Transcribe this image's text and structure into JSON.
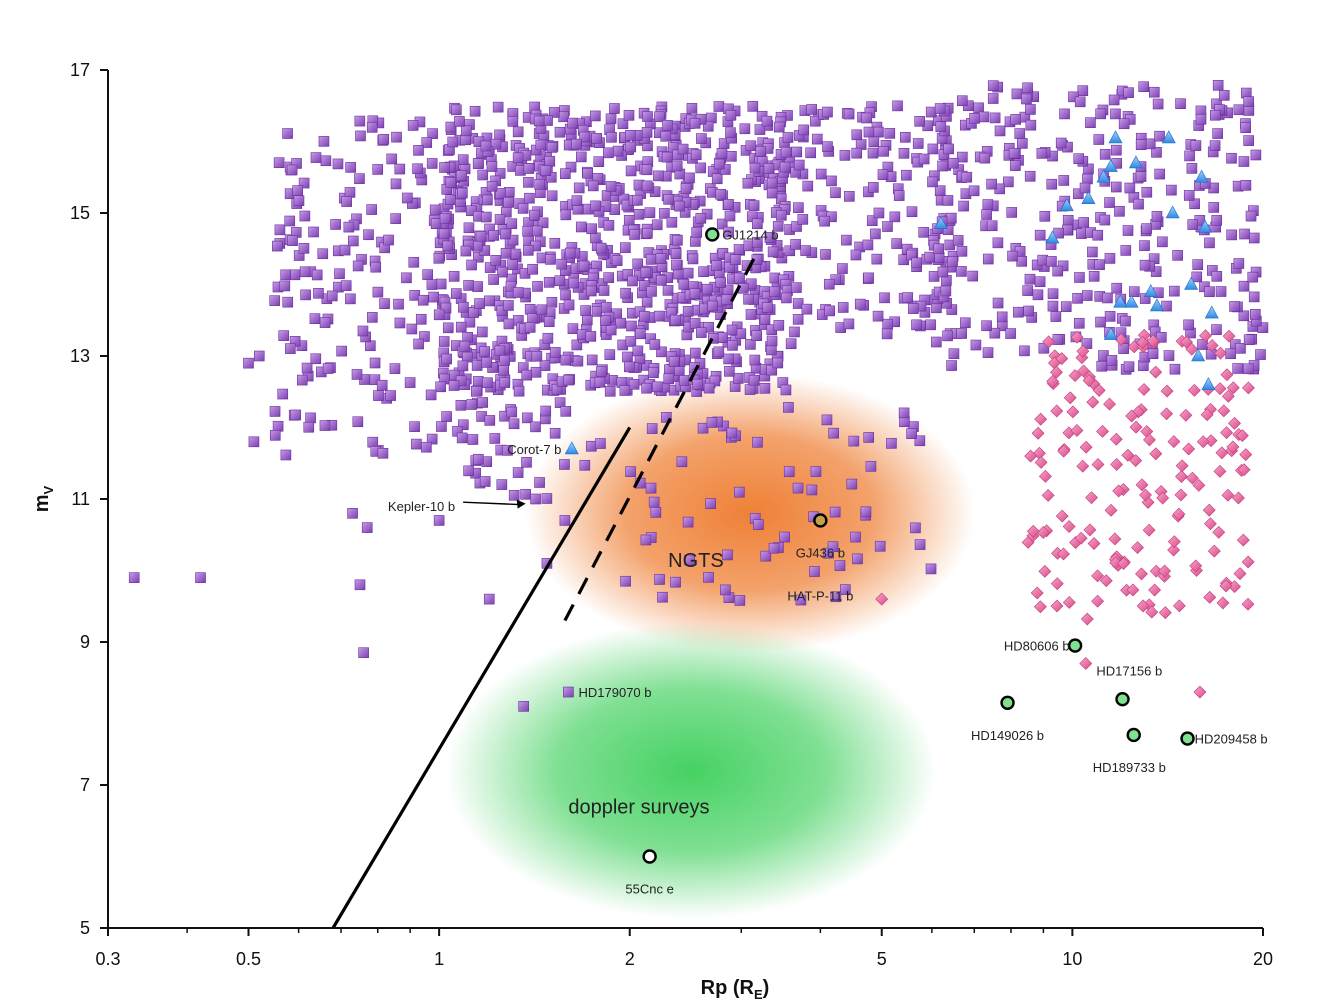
{
  "chart_data": {
    "type": "scatter",
    "title": "",
    "xlabel": "Rp (R",
    "xlabel_sub": "E",
    "xlabel_close": ")",
    "ylabel": "m",
    "ylabel_sub": "V",
    "x_scale": "log",
    "xlim": [
      0.3,
      20
    ],
    "ylim": [
      5,
      17
    ],
    "x_ticks": [
      {
        "value": 0.3,
        "label": "0.3"
      },
      {
        "value": 0.5,
        "label": "0.5"
      },
      {
        "value": 1,
        "label": "1"
      },
      {
        "value": 2,
        "label": "2"
      },
      {
        "value": 5,
        "label": "5"
      },
      {
        "value": 10,
        "label": "10"
      },
      {
        "value": 20,
        "label": "20"
      }
    ],
    "y_ticks": [
      {
        "value": 5,
        "label": "5"
      },
      {
        "value": 7,
        "label": "7"
      },
      {
        "value": 9,
        "label": "9"
      },
      {
        "value": 11,
        "label": "11"
      },
      {
        "value": 13,
        "label": "13"
      },
      {
        "value": 15,
        "label": "15"
      },
      {
        "value": 17,
        "label": "17"
      }
    ],
    "grid": false,
    "legend": "none",
    "colors": {
      "square": "#9b59c8",
      "diamond": "#ee6fa8",
      "triangle": "#4aa3ee",
      "known": "#7fe08f",
      "ngts_region": "#ee7a2c",
      "doppler_region": "#3ccf5a"
    },
    "regions": [
      {
        "label": "NGTS",
        "cx": 3.1,
        "cy": 10.8,
        "label_x": 2.3,
        "label_y": 10.05,
        "color": "#ee7a2c"
      },
      {
        "label": "doppler surveys",
        "cx": 2.5,
        "cy": 7.2,
        "label_x": 1.6,
        "label_y": 6.6,
        "color": "#3ccf5a"
      }
    ],
    "limit_lines": [
      {
        "style": "solid",
        "points": [
          [
            0.68,
            5.0
          ],
          [
            2.0,
            12.0
          ]
        ]
      },
      {
        "style": "dashed",
        "points": [
          [
            1.58,
            9.3
          ],
          [
            3.2,
            14.5
          ]
        ]
      }
    ],
    "square_clusters": [
      {
        "x_range": [
          1.0,
          3.6
        ],
        "y_range": [
          12.5,
          16.5
        ],
        "n": 900
      },
      {
        "x_range": [
          0.55,
          1.1
        ],
        "y_range": [
          11.6,
          16.3
        ],
        "n": 180
      },
      {
        "x_range": [
          3.5,
          6.5
        ],
        "y_range": [
          13.3,
          16.5
        ],
        "n": 160
      },
      {
        "x_range": [
          6.0,
          20.0
        ],
        "y_range": [
          12.8,
          16.8
        ],
        "n": 330
      },
      {
        "x_range": [
          1.05,
          1.85
        ],
        "y_range": [
          11.0,
          12.4
        ],
        "n": 40
      },
      {
        "x_range": [
          2.0,
          6.0
        ],
        "y_range": [
          9.5,
          12.3
        ],
        "n": 70
      }
    ],
    "diamond_clusters": [
      {
        "x_range": [
          8.5,
          19.0
        ],
        "y_range": [
          9.3,
          13.3
        ],
        "n": 170
      }
    ],
    "squares_extra": [
      [
        0.33,
        9.9
      ],
      [
        0.42,
        9.9
      ],
      [
        0.73,
        10.8
      ],
      [
        0.77,
        10.6
      ],
      [
        0.75,
        9.8
      ],
      [
        0.76,
        8.85
      ],
      [
        1.0,
        10.7
      ],
      [
        1.2,
        9.6
      ],
      [
        1.42,
        11.0
      ],
      [
        1.48,
        10.1
      ],
      [
        1.58,
        10.7
      ],
      [
        1.97,
        9.85
      ],
      [
        0.51,
        11.8
      ],
      [
        0.5,
        12.9
      ],
      [
        0.52,
        13.0
      ],
      [
        1.36,
        8.1
      ],
      [
        1.6,
        8.3
      ]
    ],
    "triangles": [
      [
        1.62,
        11.7
      ],
      [
        6.2,
        14.85
      ],
      [
        9.3,
        14.65
      ],
      [
        9.8,
        15.1
      ],
      [
        10.6,
        15.2
      ],
      [
        11.2,
        15.5
      ],
      [
        11.5,
        15.65
      ],
      [
        11.7,
        16.05
      ],
      [
        12.6,
        15.7
      ],
      [
        14.2,
        16.05
      ],
      [
        14.4,
        15.0
      ],
      [
        15.4,
        14.0
      ],
      [
        16.0,
        15.5
      ],
      [
        16.2,
        14.8
      ],
      [
        16.6,
        13.6
      ],
      [
        11.5,
        13.3
      ],
      [
        11.9,
        13.75
      ],
      [
        12.4,
        13.75
      ],
      [
        13.3,
        13.9
      ],
      [
        13.6,
        13.7
      ],
      [
        15.8,
        13.0
      ],
      [
        16.4,
        12.6
      ]
    ],
    "diamonds_extra": [
      [
        5.0,
        9.6
      ],
      [
        10.5,
        8.7
      ],
      [
        15.9,
        8.3
      ]
    ],
    "annotations": [
      {
        "text": "GJ1214 b",
        "x": 2.7,
        "y": 14.7,
        "marker": "circle",
        "color": "#7fe08f",
        "text_x": 2.8,
        "text_y": 14.7,
        "anchor": "start"
      },
      {
        "text": "GJ436 b",
        "x": 4.0,
        "y": 10.7,
        "marker": "circle",
        "color": "#c4a04a",
        "text_x": 4.0,
        "text_y": 10.25,
        "anchor": "middle"
      },
      {
        "text": "HAT-P-11 b",
        "x": 4.95,
        "y": 9.6,
        "marker": "none",
        "color": "",
        "text_x": 4.0,
        "text_y": 9.65,
        "anchor": "middle"
      },
      {
        "text": "Corot-7 b",
        "x": 1.62,
        "y": 11.7,
        "marker": "none",
        "color": "",
        "text_x": 1.56,
        "text_y": 11.7,
        "anchor": "end"
      },
      {
        "text": "Kepler-10 b",
        "x": 1.38,
        "y": 10.95,
        "marker": "arrow",
        "color": "",
        "text_x": 1.06,
        "text_y": 10.9,
        "anchor": "end"
      },
      {
        "text": "HD179070 b",
        "x": 1.6,
        "y": 8.3,
        "marker": "none",
        "color": "",
        "text_x": 1.66,
        "text_y": 8.3,
        "anchor": "start"
      },
      {
        "text": "55Cnc e",
        "x": 2.15,
        "y": 6.0,
        "marker": "circle",
        "color": "#ffffff",
        "text_x": 2.15,
        "text_y": 5.55,
        "anchor": "middle"
      },
      {
        "text": "HD80606 b",
        "x": 10.1,
        "y": 8.95,
        "marker": "circle",
        "color": "#7fe08f",
        "text_x": 9.9,
        "text_y": 8.95,
        "anchor": "end"
      },
      {
        "text": "HD17156 b",
        "x": 12.0,
        "y": 8.2,
        "marker": "circle",
        "color": "#7fe08f",
        "text_x": 12.3,
        "text_y": 8.6,
        "anchor": "middle"
      },
      {
        "text": "HD149026 b",
        "x": 7.9,
        "y": 8.15,
        "marker": "circle",
        "color": "#7fe08f",
        "text_x": 7.9,
        "text_y": 7.7,
        "anchor": "middle"
      },
      {
        "text": "HD189733 b",
        "x": 12.5,
        "y": 7.7,
        "marker": "circle",
        "color": "#7fe08f",
        "text_x": 12.3,
        "text_y": 7.25,
        "anchor": "middle"
      },
      {
        "text": "HD209458 b",
        "x": 15.2,
        "y": 7.65,
        "marker": "circle",
        "color": "#7fe08f",
        "text_x": 15.6,
        "text_y": 7.65,
        "anchor": "start"
      }
    ]
  }
}
